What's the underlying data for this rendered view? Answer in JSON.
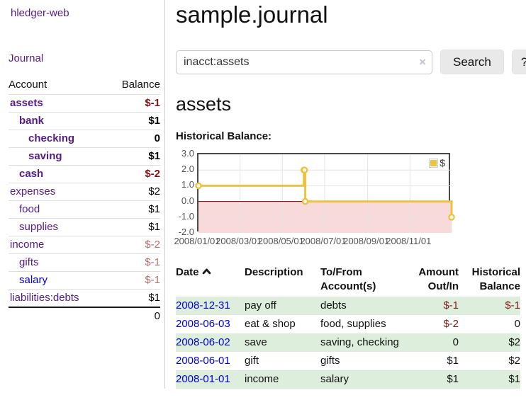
{
  "sidebar": {
    "app_title": "hledger-web",
    "journal_link": "Journal",
    "account_header": "Account",
    "balance_header": "Balance",
    "accounts": [
      {
        "name": "assets",
        "indent": 0,
        "bold": true,
        "balance": "$-1",
        "neg": "strong",
        "link": "purple"
      },
      {
        "name": "bank",
        "indent": 1,
        "bold": true,
        "balance": "$1",
        "neg": "none",
        "link": "purple"
      },
      {
        "name": "checking",
        "indent": 2,
        "bold": true,
        "balance": "0",
        "neg": "none",
        "link": "purple"
      },
      {
        "name": "saving",
        "indent": 2,
        "bold": true,
        "balance": "$1",
        "neg": "none",
        "link": "purple"
      },
      {
        "name": "cash",
        "indent": 1,
        "bold": true,
        "balance": "$-2",
        "neg": "strong",
        "link": "purple"
      },
      {
        "name": "expenses",
        "indent": 0,
        "bold": false,
        "balance": "$2",
        "neg": "none",
        "link": "purple"
      },
      {
        "name": "food",
        "indent": 1,
        "bold": false,
        "balance": "$1",
        "neg": "none",
        "link": "purple"
      },
      {
        "name": "supplies",
        "indent": 1,
        "bold": false,
        "balance": "$1",
        "neg": "none",
        "link": "purple"
      },
      {
        "name": "income",
        "indent": 0,
        "bold": false,
        "balance": "$-2",
        "neg": "soft",
        "link": "purple"
      },
      {
        "name": "gifts",
        "indent": 1,
        "bold": false,
        "balance": "$-1",
        "neg": "soft",
        "link": "purple"
      },
      {
        "name": "salary",
        "indent": 1,
        "bold": false,
        "balance": "$-1",
        "neg": "soft",
        "link": "blue"
      },
      {
        "name": "liabilities:debts",
        "indent": 0,
        "bold": false,
        "balance": "$1",
        "neg": "none",
        "link": "purple"
      }
    ],
    "total": "0"
  },
  "header": {
    "title": "sample.journal"
  },
  "search": {
    "query": "inacct:assets",
    "clear_icon": "×",
    "button_label": "Search",
    "help_label": "?"
  },
  "account_page": {
    "heading": "assets",
    "chart_title": "Historical Balance:"
  },
  "chart_data": {
    "type": "line",
    "steps": true,
    "title": "Historical Balance",
    "x_start": "2008-01-01",
    "x_range_days": 365,
    "ylim": [
      -2,
      3
    ],
    "y_ticks": [
      3.0,
      2.0,
      1.0,
      0.0,
      -1.0,
      -2.0
    ],
    "x_ticks": [
      {
        "label": "2008/01/01",
        "date": "2008-01-01"
      },
      {
        "label": "2008/03/01",
        "date": "2008-03-01"
      },
      {
        "label": "2008/05/01",
        "date": "2008-05-01"
      },
      {
        "label": "2008/07/01",
        "date": "2008-07-01"
      },
      {
        "label": "2008/09/01",
        "date": "2008-09-01"
      },
      {
        "label": "2008/11/01",
        "date": "2008-11-01"
      }
    ],
    "series": [
      {
        "name": "$",
        "color": "#edc240",
        "points": [
          [
            "2008-01-01",
            1
          ],
          [
            "2008-06-01",
            2
          ],
          [
            "2008-06-02",
            2
          ],
          [
            "2008-06-03",
            0
          ],
          [
            "2008-12-31",
            -1
          ]
        ]
      }
    ],
    "legend": {
      "label": "$",
      "position": "top-right"
    },
    "grid": true,
    "negative_region_color": "#f9dada",
    "zero_line_color": "#8b0000",
    "gridline_color": "#e4e4e4",
    "border_color": "#4a4a4a"
  },
  "register": {
    "columns": [
      {
        "label": "Date",
        "align": "left",
        "sorted": "asc"
      },
      {
        "label": "Description",
        "align": "left"
      },
      {
        "label": "To/From Account(s)",
        "align": "left"
      },
      {
        "label": "Amount Out/In",
        "align": "right"
      },
      {
        "label": "Historical Balance",
        "align": "right"
      }
    ],
    "rows": [
      {
        "date": "2008-12-31",
        "description": "pay off",
        "accounts": "debts",
        "amount": "$-1",
        "amount_neg": true,
        "balance": "$-1",
        "balance_neg": true,
        "stripe": true
      },
      {
        "date": "2008-06-03",
        "description": "eat & shop",
        "accounts": "food, supplies",
        "amount": "$-2",
        "amount_neg": true,
        "balance": "0",
        "balance_neg": false,
        "stripe": false
      },
      {
        "date": "2008-06-02",
        "description": "save",
        "accounts": "saving, checking",
        "amount": "0",
        "amount_neg": false,
        "balance": "$2",
        "balance_neg": false,
        "stripe": true
      },
      {
        "date": "2008-06-01",
        "description": "gift",
        "accounts": "gifts",
        "amount": "$1",
        "amount_neg": false,
        "balance": "$2",
        "balance_neg": false,
        "stripe": false
      },
      {
        "date": "2008-01-01",
        "description": "income",
        "accounts": "salary",
        "amount": "$1",
        "amount_neg": false,
        "balance": "$1",
        "balance_neg": false,
        "stripe": true
      }
    ]
  }
}
